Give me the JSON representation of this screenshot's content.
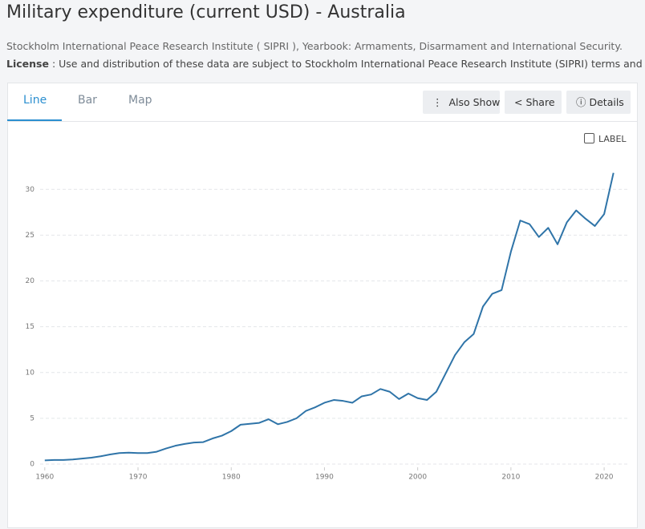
{
  "header": {
    "title": "Military expenditure (current USD) - Australia",
    "source": "Stockholm International Peace Research Institute ( SIPRI ), Yearbook: Armaments, Disarmament and International Security.",
    "license_label": "License",
    "license_text": ": Use and distribution of these data are subject to Stockholm International Peace Research Institute (SIPRI) terms and condit"
  },
  "tabs": [
    "Line",
    "Bar",
    "Map"
  ],
  "buttons": [
    "Also Show",
    "Share",
    "Details"
  ],
  "label_toggle": "LABEL",
  "chart_data": {
    "type": "line",
    "x": [
      1960,
      1961,
      1962,
      1963,
      1964,
      1965,
      1966,
      1967,
      1968,
      1969,
      1970,
      1971,
      1972,
      1973,
      1974,
      1975,
      1976,
      1977,
      1978,
      1979,
      1980,
      1981,
      1982,
      1983,
      1984,
      1985,
      1986,
      1987,
      1988,
      1989,
      1990,
      1991,
      1992,
      1993,
      1994,
      1995,
      1996,
      1997,
      1998,
      1999,
      2000,
      2001,
      2002,
      2003,
      2004,
      2005,
      2006,
      2007,
      2008,
      2009,
      2010,
      2011,
      2012,
      2013,
      2014,
      2015,
      2016,
      2017,
      2018,
      2019,
      2020,
      2021
    ],
    "series": [
      {
        "name": "Australia",
        "color": "#2f74a8",
        "values": [
          0.4,
          0.45,
          0.45,
          0.5,
          0.6,
          0.7,
          0.85,
          1.05,
          1.2,
          1.25,
          1.2,
          1.2,
          1.35,
          1.7,
          2.0,
          2.2,
          2.35,
          2.4,
          2.8,
          3.1,
          3.6,
          4.3,
          4.4,
          4.5,
          4.9,
          4.35,
          4.6,
          5.0,
          5.8,
          6.2,
          6.7,
          7.0,
          6.9,
          6.7,
          7.4,
          7.6,
          8.2,
          7.9,
          7.1,
          7.7,
          7.2,
          7.0,
          7.9,
          9.9,
          11.9,
          13.3,
          14.2,
          17.2,
          18.6,
          19.0,
          23.2,
          26.6,
          26.2,
          24.8,
          25.8,
          24.0,
          26.4,
          27.7,
          26.8,
          26.0,
          27.3,
          31.8
        ]
      }
    ],
    "xlim": [
      1959.5,
      2021.8
    ],
    "ylim": [
      0,
      33
    ],
    "xticks": [
      1960,
      1970,
      1980,
      1990,
      2000,
      2010,
      2020
    ],
    "yticks": [
      0,
      5,
      10,
      15,
      20,
      25,
      30
    ],
    "grid": true
  }
}
